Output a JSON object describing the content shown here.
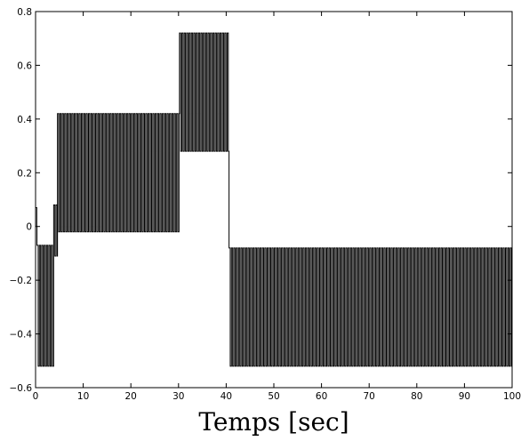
{
  "chart_data": {
    "type": "line",
    "title": "",
    "xlabel": "Temps [sec]",
    "ylabel": "",
    "xlim": [
      0,
      100
    ],
    "ylim": [
      -0.6,
      0.8
    ],
    "x_ticks": [
      0,
      10,
      20,
      30,
      40,
      50,
      60,
      70,
      80,
      90,
      100
    ],
    "y_ticks": [
      -0.6,
      -0.4,
      -0.2,
      0,
      0.2,
      0.4,
      0.6,
      0.8
    ],
    "x_tick_labels": [
      "0",
      "10",
      "20",
      "30",
      "40",
      "50",
      "60",
      "70",
      "80",
      "90",
      "100"
    ],
    "y_tick_labels": [
      "−0.6",
      "−0.4",
      "−0.2",
      "0",
      "0.2",
      "0.4",
      "0.6",
      "0.8"
    ],
    "grid": false,
    "line_color": "#000000",
    "series": [
      {
        "style": "square-wave oscillation",
        "oscillation_period": 0.5,
        "segments": [
          {
            "t_start": 0.0,
            "t_end": 0.3,
            "low": 0.0,
            "high": 0.07
          },
          {
            "t_start": 0.3,
            "t_end": 3.8,
            "low": -0.52,
            "high": -0.07
          },
          {
            "t_start": 3.8,
            "t_end": 4.6,
            "low": -0.11,
            "high": 0.08
          },
          {
            "t_start": 4.6,
            "t_end": 30.2,
            "low": -0.02,
            "high": 0.42
          },
          {
            "t_start": 30.2,
            "t_end": 40.6,
            "low": 0.28,
            "high": 0.72
          },
          {
            "t_start": 40.6,
            "t_end": 100.0,
            "low": -0.52,
            "high": -0.08
          }
        ]
      }
    ]
  }
}
